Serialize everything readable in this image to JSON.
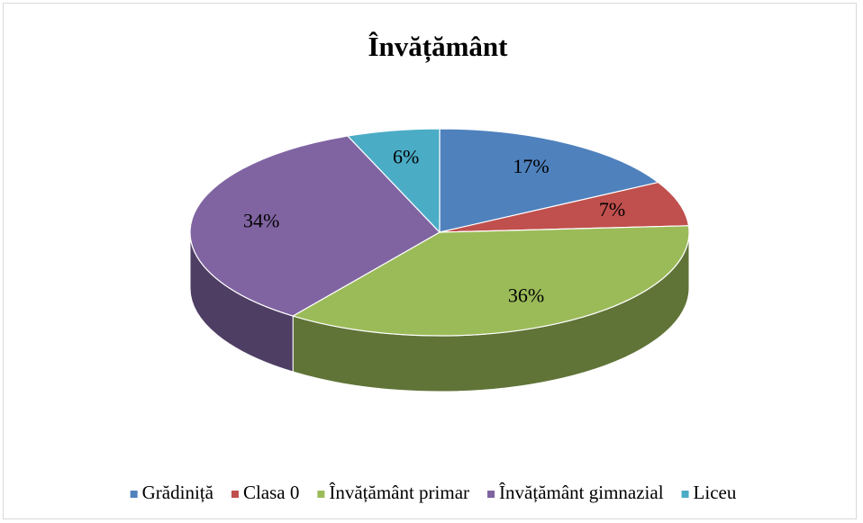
{
  "chart_data": {
    "type": "pie",
    "title": "Învățământ",
    "categories": [
      "Grădiniță",
      "Clasa 0",
      "Învățământ primar",
      "Învățământ gimnazial",
      "Liceu"
    ],
    "values": [
      17,
      7,
      36,
      34,
      6
    ],
    "value_labels": [
      "17%",
      "7%",
      "36%",
      "34%",
      "6%"
    ],
    "colors": [
      "#4f81bd",
      "#c0504d",
      "#9bbb59",
      "#8064a2",
      "#4bacc6"
    ],
    "legend": "bottom"
  }
}
